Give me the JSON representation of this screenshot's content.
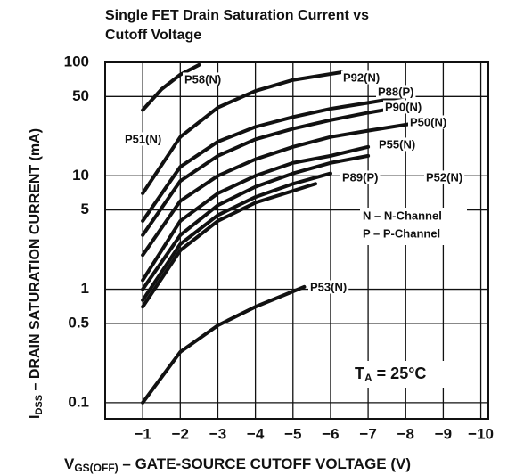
{
  "chart_data": {
    "type": "line",
    "title": [
      "Single FET Drain Saturation Current vs",
      "Cutoff Voltage"
    ],
    "x_label": [
      "V",
      "GS(OFF)",
      " – GATE-SOURCE CUTOFF VOLTAGE (V)"
    ],
    "y_label": [
      "I",
      "DSS",
      " – DRAIN SATURATION CURRENT (mA)"
    ],
    "log_y": true,
    "grid": true,
    "xlim": [
      0,
      -10.2
    ],
    "ylim": [
      0.072,
      100
    ],
    "xticks": [
      {
        "value": -1,
        "label": "−1"
      },
      {
        "value": -2,
        "label": "−2"
      },
      {
        "value": -3,
        "label": "−3"
      },
      {
        "value": -4,
        "label": "−4"
      },
      {
        "value": -5,
        "label": "−5"
      },
      {
        "value": -6,
        "label": "−6"
      },
      {
        "value": -7,
        "label": "−7"
      },
      {
        "value": -8,
        "label": "−8"
      },
      {
        "value": -9,
        "label": "−9"
      },
      {
        "value": -10,
        "label": "−10"
      }
    ],
    "yticks": [
      100,
      50,
      10,
      5,
      1,
      0.5,
      0.1
    ],
    "series": [
      {
        "name": "P58(N)",
        "color": "#111111",
        "x": [
          -1,
          -1.5,
          -2,
          -2.5
        ],
        "values": [
          38,
          58,
          78,
          95
        ]
      },
      {
        "name": "P92(N)",
        "color": "#111111",
        "x": [
          -1,
          -2,
          -3,
          -4,
          -5,
          -6.3
        ],
        "values": [
          7,
          22,
          40,
          56,
          70,
          82
        ]
      },
      {
        "name": "P88(P)",
        "color": "#111111",
        "x": [
          -1,
          -2,
          -3,
          -4,
          -5,
          -6,
          -7,
          -8
        ],
        "values": [
          4,
          12,
          20,
          27,
          33,
          39,
          44,
          50
        ]
      },
      {
        "name": "P90(N)",
        "color": "#111111",
        "x": [
          -1,
          -2,
          -3,
          -4,
          -5,
          -6,
          -7,
          -8
        ],
        "values": [
          3,
          9,
          15,
          21,
          26,
          31,
          36,
          41
        ]
      },
      {
        "name": "P50(N)",
        "color": "#111111",
        "x": [
          -1,
          -2,
          -3,
          -4,
          -5,
          -6,
          -7,
          -8.5
        ],
        "values": [
          2,
          6,
          10,
          14,
          18,
          22,
          25,
          30
        ]
      },
      {
        "name": "P55(N)",
        "color": "#111111",
        "x": [
          -1,
          -2,
          -3,
          -4,
          -5,
          -6,
          -7
        ],
        "values": [
          1.2,
          4,
          7,
          10,
          13,
          15,
          18
        ]
      },
      {
        "name": "P52(N)",
        "color": "#111111",
        "x": [
          -1,
          -2,
          -3,
          -4,
          -5,
          -6,
          -7
        ],
        "values": [
          1,
          3,
          5.5,
          8,
          10.5,
          13,
          15
        ]
      },
      {
        "name": "P89(P)",
        "color": "#111111",
        "x": [
          -1,
          -2,
          -3,
          -4,
          -5,
          -6
        ],
        "values": [
          0.8,
          2.5,
          4.5,
          6.5,
          8.5,
          10.5
        ]
      },
      {
        "name": "P51(N)",
        "color": "#111111",
        "x": [
          -1,
          -2,
          -3,
          -4,
          -5.6
        ],
        "values": [
          0.7,
          2.2,
          4,
          5.8,
          8.5
        ]
      },
      {
        "name": "P53(N)",
        "color": "#111111",
        "x": [
          -1,
          -2,
          -3,
          -4,
          -5.3
        ],
        "values": [
          0.1,
          0.28,
          0.48,
          0.7,
          1.05
        ]
      }
    ],
    "annotations": [
      "N – N-Channel",
      "P – P-Channel"
    ],
    "temperature": [
      "T",
      "A",
      " = 25°C"
    ]
  }
}
